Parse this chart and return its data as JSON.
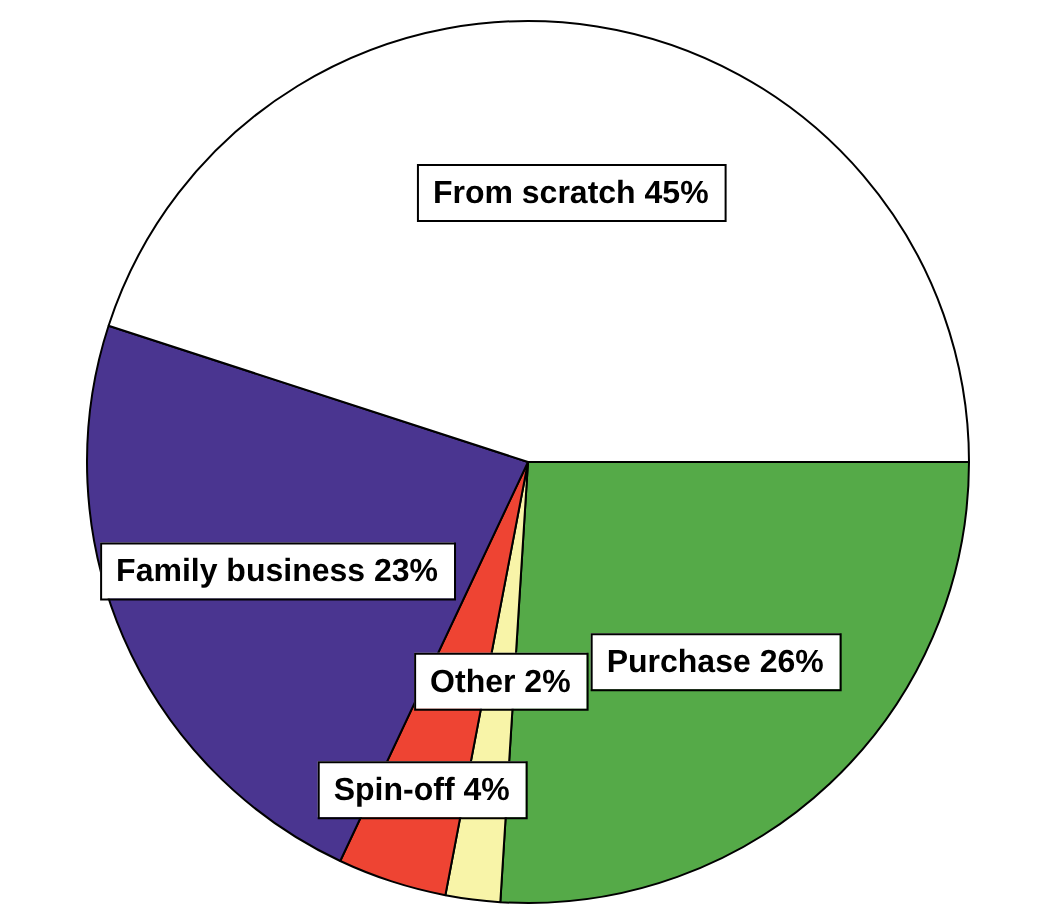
{
  "chart_data": {
    "type": "pie",
    "categories": [
      "Purchase",
      "Other",
      "Spin-off",
      "Family business",
      "From scratch"
    ],
    "values": [
      26,
      2,
      4,
      23,
      45
    ],
    "value_labels": [
      "26%",
      "2%",
      "4%",
      "23%",
      "45%"
    ],
    "colors": [
      "#55aa48",
      "#f8f4a8",
      "#ee4433",
      "#4a3590",
      "#ffffff"
    ],
    "legend": false
  }
}
